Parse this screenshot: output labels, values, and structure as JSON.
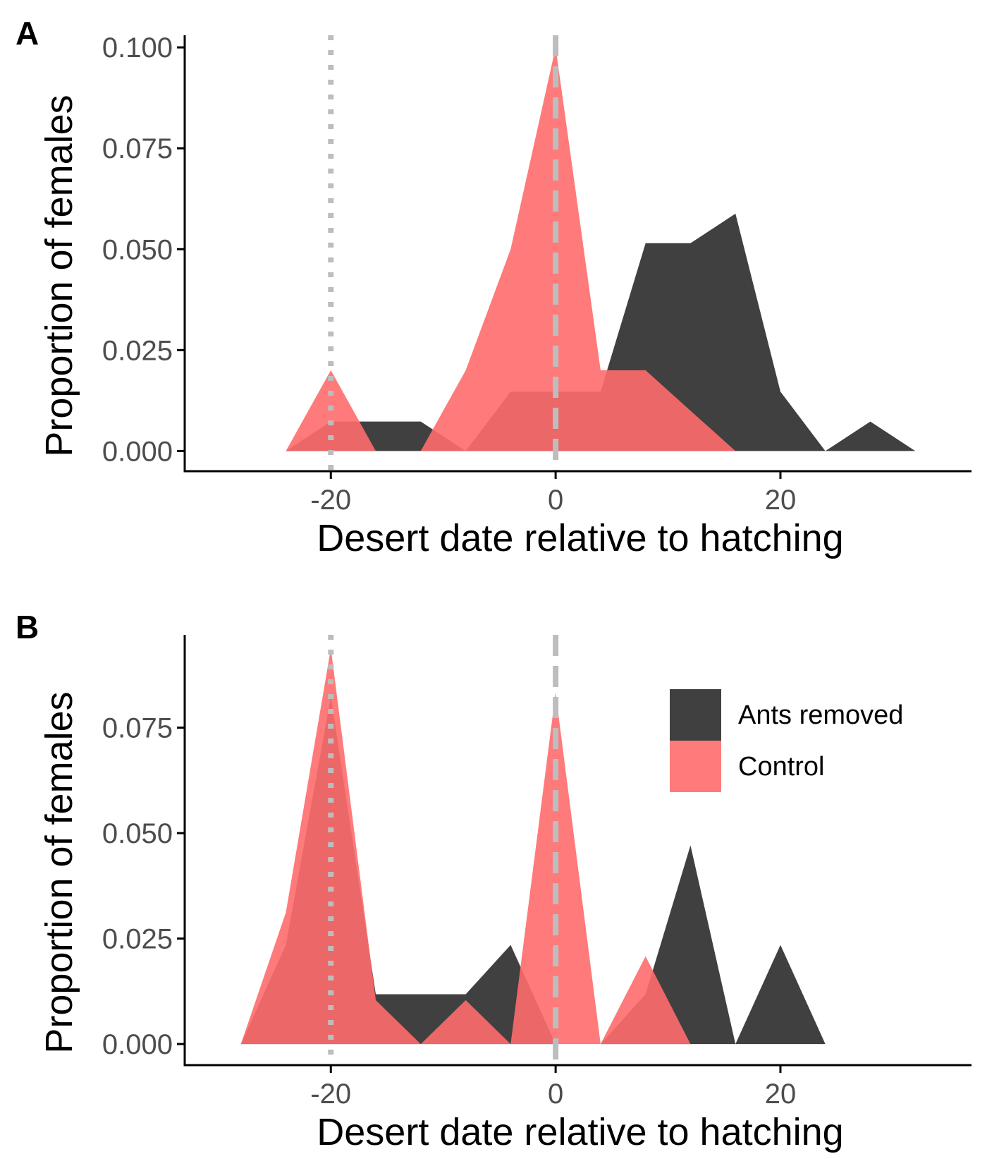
{
  "colors": {
    "ants_removed": "#404040",
    "control": "#ff6b6b",
    "reference_line": "#bdbdbd",
    "axis": "#000000",
    "tick_text": "#4d4d4d"
  },
  "chart_data": [
    {
      "panel": "A",
      "type": "area",
      "xlabel": "Desert date relative to hatching",
      "ylabel": "Proportion of females",
      "xlim": [
        -33,
        37
      ],
      "ylim": [
        -0.005,
        0.103
      ],
      "xticks": [
        -20,
        0,
        20
      ],
      "yticks": [
        0.0,
        0.025,
        0.05,
        0.075,
        0.1
      ],
      "xtick_labels": [
        "-20",
        "0",
        "20"
      ],
      "ytick_labels": [
        "0.000",
        "0.025",
        "0.050",
        "0.075",
        "0.100"
      ],
      "grid": false,
      "reference_lines": [
        {
          "x": -20,
          "style": "dotted"
        },
        {
          "x": 0,
          "style": "dashed"
        }
      ],
      "series": [
        {
          "name": "Ants removed",
          "color": "#404040",
          "x": [
            -24,
            -20,
            -12,
            -8,
            -4,
            0,
            4,
            8,
            12,
            16,
            20,
            24,
            28,
            32
          ],
          "y": [
            0.0,
            0.0073,
            0.0073,
            0.0,
            0.0147,
            0.0147,
            0.0147,
            0.0515,
            0.0515,
            0.0588,
            0.0147,
            0.0,
            0.0073,
            0.0
          ]
        },
        {
          "name": "Control",
          "color": "#ff6b6b",
          "x": [
            -24,
            -20,
            -16,
            -12,
            -8,
            -4,
            0,
            4,
            8,
            12,
            16
          ],
          "y": [
            0.0,
            0.02,
            0.0,
            0.0,
            0.02,
            0.05,
            0.1,
            0.02,
            0.02,
            0.01,
            0.0
          ]
        }
      ]
    },
    {
      "panel": "B",
      "type": "area",
      "xlabel": "Desert date relative to hatching",
      "ylabel": "Proportion of females",
      "xlim": [
        -33,
        37
      ],
      "ylim": [
        -0.005,
        0.097
      ],
      "xticks": [
        -20,
        0,
        20
      ],
      "yticks": [
        0.0,
        0.025,
        0.05,
        0.075
      ],
      "xtick_labels": [
        "-20",
        "0",
        "20"
      ],
      "ytick_labels": [
        "0.000",
        "0.025",
        "0.050",
        "0.075"
      ],
      "grid": false,
      "legend_position": "top-right",
      "reference_lines": [
        {
          "x": -20,
          "style": "dotted"
        },
        {
          "x": 0,
          "style": "dashed"
        }
      ],
      "series": [
        {
          "name": "Ants removed",
          "color": "#404040",
          "x": [
            -28,
            -24,
            -20,
            -16,
            -8,
            -4,
            0,
            4,
            8,
            12,
            16,
            20,
            24
          ],
          "y": [
            0.0,
            0.0235,
            0.0824,
            0.0118,
            0.0118,
            0.0235,
            0.0,
            0.0,
            0.0118,
            0.0471,
            0.0,
            0.0235,
            0.0
          ]
        },
        {
          "name": "Control",
          "color": "#ff6b6b",
          "x": [
            -28,
            -24,
            -20,
            -16,
            -12,
            -8,
            -4,
            0,
            4,
            8,
            12
          ],
          "y": [
            0.0,
            0.0312,
            0.0938,
            0.0104,
            0.0,
            0.0104,
            0.0,
            0.0833,
            0.0,
            0.0208,
            0.0
          ]
        }
      ]
    }
  ],
  "legend": {
    "items": [
      {
        "label": "Ants removed",
        "color": "#404040"
      },
      {
        "label": "Control",
        "color": "#ff6b6b"
      }
    ]
  }
}
